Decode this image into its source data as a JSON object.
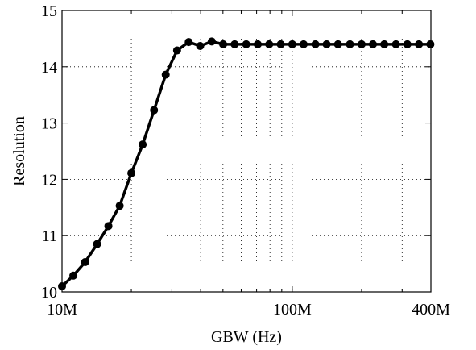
{
  "chart_data": {
    "type": "line",
    "xlabel": "GBW (Hz)",
    "ylabel": "Resolution",
    "xscale": "log",
    "xlim": [
      10000000,
      400000000
    ],
    "ylim": [
      10,
      15
    ],
    "grid": true,
    "legend": "none",
    "xticks": [
      {
        "value": 10000000,
        "label": "10M"
      },
      {
        "value": 100000000,
        "label": "100M"
      },
      {
        "value": 400000000,
        "label": "400M"
      }
    ],
    "yticks": [
      {
        "value": 10,
        "label": "10"
      },
      {
        "value": 11,
        "label": "11"
      },
      {
        "value": 12,
        "label": "12"
      },
      {
        "value": 13,
        "label": "13"
      },
      {
        "value": 14,
        "label": "14"
      },
      {
        "value": 15,
        "label": "15"
      }
    ],
    "series": [
      {
        "color": "#000000",
        "marker": "circle",
        "x": [
          10000000,
          11200000,
          12600000,
          14200000,
          15900000,
          17800000,
          20000000,
          22400000,
          25100000,
          28200000,
          31600000,
          35500000,
          39800000,
          44700000,
          50100000,
          56200000,
          63100000,
          70800000,
          79400000,
          89100000,
          100000000,
          112000000,
          126000000,
          141000000,
          158000000,
          178000000,
          200000000,
          224000000,
          251000000,
          282000000,
          316000000,
          355000000,
          398000000
        ],
        "y": [
          10.1,
          10.29,
          10.53,
          10.85,
          11.17,
          11.53,
          12.11,
          12.62,
          13.23,
          13.86,
          14.29,
          14.44,
          14.37,
          14.45,
          14.4,
          14.4,
          14.4,
          14.4,
          14.4,
          14.4,
          14.4,
          14.4,
          14.4,
          14.4,
          14.4,
          14.4,
          14.4,
          14.4,
          14.4,
          14.4,
          14.4,
          14.4,
          14.4
        ]
      }
    ]
  }
}
